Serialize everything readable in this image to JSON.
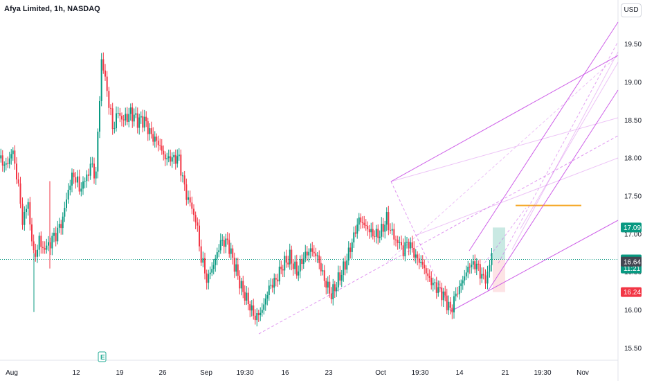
{
  "header": {
    "title": "Afya Limited, 1h, NASDAQ",
    "currency_button": "USD"
  },
  "event_marker": "E",
  "chart_data": {
    "type": "candlestick",
    "ylim": [
      15.4,
      20.0
    ],
    "y_ticks": [
      "15.50",
      "16.00",
      "16.50",
      "17.00",
      "17.50",
      "18.00",
      "18.50",
      "19.00",
      "19.50"
    ],
    "x_ticks": [
      "Aug",
      "12",
      "19",
      "26",
      "Sep",
      "19:30",
      "16",
      "23",
      "Oct",
      "19:30",
      "14",
      "21",
      "19:30",
      "Nov"
    ],
    "price_tags": [
      {
        "label": "17.09",
        "value": 17.09,
        "color": "#089981"
      },
      {
        "label": "16.67",
        "value": 16.67,
        "color": "#089981"
      },
      {
        "label": "11:21",
        "value": 16.55,
        "color": "#089981"
      },
      {
        "label": "16.64",
        "value": 16.64,
        "color": "#434651"
      },
      {
        "label": "16.24",
        "value": 16.24,
        "color": "#f23645"
      }
    ],
    "current_price": 16.67,
    "colors": {
      "up": "#089981",
      "down": "#f23645",
      "pitchfork": "#c94fe6",
      "target_zone": "#089981",
      "stop_zone": "#f23645",
      "level": "#f5a623"
    }
  }
}
